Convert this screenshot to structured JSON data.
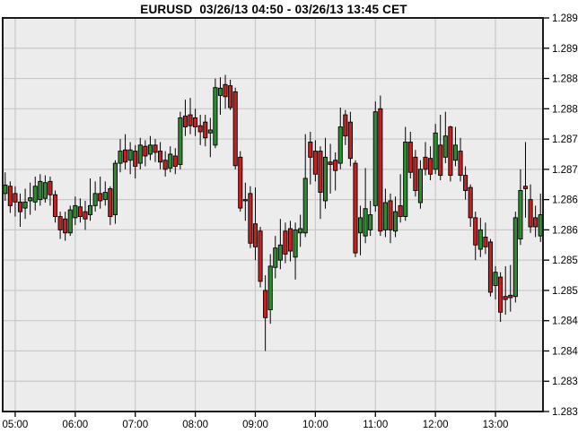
{
  "title": "EURUSD  03/26/13 04:50 - 03/26/13 13:45 CET",
  "chart_data": {
    "type": "candlestick",
    "symbol": "EURUSD",
    "period_label": "03/26/13 04:50 - 03/26/13 13:45 CET",
    "y_axis": {
      "min": 1.283,
      "max": 1.2895,
      "step": 0.0005,
      "labels": [
        "1.2895",
        "1.289",
        "1.2885",
        "1.288",
        "1.2875",
        "1.287",
        "1.2865",
        "1.286",
        "1.2855",
        "1.285",
        "1.2845",
        "1.284",
        "1.2835",
        "1.283"
      ]
    },
    "x_axis": {
      "labels": [
        "05:00",
        "06:00",
        "07:00",
        "08:00",
        "09:00",
        "10:00",
        "11:00",
        "12:00",
        "13:00"
      ]
    },
    "colors": {
      "up": "#2E8B32",
      "down": "#C32222",
      "wick": "#000000",
      "background": "#ECECEC",
      "grid": "#C9C9C9",
      "border": "#1A1A1A",
      "text": "#000000"
    },
    "grid": true,
    "legend": "none",
    "columns": [
      "time",
      "open",
      "high",
      "low",
      "close"
    ],
    "candles": [
      [
        "04:50",
        1.2866,
        1.28695,
        1.28648,
        1.28674
      ],
      [
        "04:55",
        1.28672,
        1.2868,
        1.28628,
        1.2864
      ],
      [
        "05:00",
        1.2866,
        1.28672,
        1.28622,
        1.28646
      ],
      [
        "05:05",
        1.28646,
        1.2866,
        1.28605,
        1.2863
      ],
      [
        "05:10",
        1.28636,
        1.28668,
        1.28618,
        1.28646
      ],
      [
        "05:15",
        1.28648,
        1.28678,
        1.28625,
        1.28653
      ],
      [
        "05:20",
        1.28646,
        1.28688,
        1.28632,
        1.28672
      ],
      [
        "05:25",
        1.2865,
        1.28692,
        1.2864,
        1.2868
      ],
      [
        "05:30",
        1.28652,
        1.2869,
        1.28645,
        1.28678
      ],
      [
        "05:35",
        1.2868,
        1.28688,
        1.2864,
        1.28658
      ],
      [
        "05:40",
        1.28658,
        1.28665,
        1.28612,
        1.28622
      ],
      [
        "05:45",
        1.28622,
        1.2863,
        1.28585,
        1.286
      ],
      [
        "05:50",
        1.28618,
        1.2863,
        1.28582,
        1.28595
      ],
      [
        "05:55",
        1.28595,
        1.2864,
        1.2859,
        1.28633
      ],
      [
        "06:00",
        1.2862,
        1.28655,
        1.28608,
        1.2864
      ],
      [
        "06:05",
        1.28638,
        1.28652,
        1.28612,
        1.28622
      ],
      [
        "06:10",
        1.2863,
        1.28648,
        1.286,
        1.28618
      ],
      [
        "06:15",
        1.28625,
        1.28685,
        1.28615,
        1.2864
      ],
      [
        "06:20",
        1.2864,
        1.2868,
        1.2863,
        1.2866
      ],
      [
        "06:25",
        1.2866,
        1.28688,
        1.28635,
        1.28648
      ],
      [
        "06:30",
        1.2865,
        1.2868,
        1.2864,
        1.28662
      ],
      [
        "06:35",
        1.28668,
        1.28672,
        1.28608,
        1.28622
      ],
      [
        "06:40",
        1.28625,
        1.28715,
        1.2861,
        1.2871
      ],
      [
        "06:45",
        1.2871,
        1.2875,
        1.28695,
        1.2873
      ],
      [
        "06:50",
        1.28732,
        1.28758,
        1.287,
        1.28712
      ],
      [
        "06:55",
        1.28715,
        1.28745,
        1.28692,
        1.28732
      ],
      [
        "07:00",
        1.2873,
        1.2874,
        1.28685,
        1.28705
      ],
      [
        "07:05",
        1.2871,
        1.28752,
        1.287,
        1.2874
      ],
      [
        "07:10",
        1.28738,
        1.28748,
        1.28705,
        1.28722
      ],
      [
        "07:15",
        1.28725,
        1.28755,
        1.28715,
        1.2874
      ],
      [
        "07:20",
        1.2874,
        1.2875,
        1.28712,
        1.28728
      ],
      [
        "07:25",
        1.2873,
        1.28745,
        1.287,
        1.28712
      ],
      [
        "07:30",
        1.28715,
        1.2873,
        1.28688,
        1.287
      ],
      [
        "07:35",
        1.28702,
        1.28738,
        1.28695,
        1.28725
      ],
      [
        "07:40",
        1.28722,
        1.28735,
        1.28692,
        1.28705
      ],
      [
        "07:45",
        1.28708,
        1.28795,
        1.287,
        1.28785
      ],
      [
        "07:50",
        1.28788,
        1.28815,
        1.28755,
        1.2877
      ],
      [
        "07:55",
        1.2879,
        1.28818,
        1.28758,
        1.28772
      ],
      [
        "08:00",
        1.28785,
        1.288,
        1.28755,
        1.2877
      ],
      [
        "08:05",
        1.28772,
        1.2879,
        1.2874,
        1.28762
      ],
      [
        "08:10",
        1.28778,
        1.2879,
        1.28738,
        1.28752
      ],
      [
        "08:15",
        1.2876,
        1.28785,
        1.2872,
        1.28765
      ],
      [
        "08:20",
        1.2874,
        1.2885,
        1.28735,
        1.28835
      ],
      [
        "08:25",
        1.28822,
        1.28852,
        1.2879,
        1.28834
      ],
      [
        "08:30",
        1.2884,
        1.28856,
        1.288,
        1.2882
      ],
      [
        "08:35",
        1.28838,
        1.28848,
        1.28798,
        1.28802
      ],
      [
        "08:40",
        1.28828,
        1.28835,
        1.287,
        1.28706
      ],
      [
        "08:45",
        1.2872,
        1.2873,
        1.2863,
        1.28636
      ],
      [
        "08:50",
        1.2865,
        1.28678,
        1.28615,
        1.28648
      ],
      [
        "08:55",
        1.2866,
        1.28672,
        1.2857,
        1.28578
      ],
      [
        "09:00",
        1.2861,
        1.2867,
        1.2855,
        1.28572
      ],
      [
        "09:05",
        1.28598,
        1.28605,
        1.28505,
        1.28515
      ],
      [
        "09:10",
        1.285,
        1.28525,
        1.284,
        1.28455
      ],
      [
        "09:15",
        1.28468,
        1.2856,
        1.28445,
        1.2854
      ],
      [
        "09:20",
        1.28538,
        1.2859,
        1.2852,
        1.2857
      ],
      [
        "09:25",
        1.2855,
        1.28618,
        1.28535,
        1.28575
      ],
      [
        "09:30",
        1.28598,
        1.28612,
        1.28545,
        1.2856
      ],
      [
        "09:35",
        1.28602,
        1.28615,
        1.28548,
        1.28565
      ],
      [
        "09:40",
        1.28555,
        1.28612,
        1.28518,
        1.286
      ],
      [
        "09:45",
        1.28595,
        1.28625,
        1.28572,
        1.28602
      ],
      [
        "09:50",
        1.28595,
        1.28758,
        1.28588,
        1.28685
      ],
      [
        "09:55",
        1.28745,
        1.28762,
        1.28675,
        1.2872
      ],
      [
        "10:00",
        1.2873,
        1.28748,
        1.2868,
        1.28692
      ],
      [
        "10:05",
        1.2873,
        1.28738,
        1.28618,
        1.28662
      ],
      [
        "10:10",
        1.28648,
        1.28752,
        1.28635,
        1.2872
      ],
      [
        "10:15",
        1.28712,
        1.28742,
        1.2866,
        1.28708
      ],
      [
        "10:20",
        1.28715,
        1.28728,
        1.28665,
        1.28698
      ],
      [
        "10:25",
        1.2871,
        1.28802,
        1.287,
        1.2877
      ],
      [
        "10:30",
        1.2879,
        1.28798,
        1.2874,
        1.28755
      ],
      [
        "10:35",
        1.28778,
        1.28795,
        1.28705,
        1.28718
      ],
      [
        "10:40",
        1.2871,
        1.28715,
        1.28555,
        1.28562
      ],
      [
        "10:45",
        1.28595,
        1.2864,
        1.28558,
        1.2862
      ],
      [
        "10:50",
        1.2859,
        1.28702,
        1.28578,
        1.28635
      ],
      [
        "10:55",
        1.286,
        1.28648,
        1.2859,
        1.28625
      ],
      [
        "11:00",
        1.2864,
        1.28812,
        1.2863,
        1.28795
      ],
      [
        "11:05",
        1.288,
        1.28822,
        1.2859,
        1.28598
      ],
      [
        "11:10",
        1.286,
        1.28668,
        1.28588,
        1.28645
      ],
      [
        "11:15",
        1.28648,
        1.2866,
        1.28578,
        1.286
      ],
      [
        "11:20",
        1.28598,
        1.28655,
        1.28588,
        1.2863
      ],
      [
        "11:25",
        1.2864,
        1.28692,
        1.28612,
        1.28622
      ],
      [
        "11:30",
        1.28622,
        1.2877,
        1.28615,
        1.28745
      ],
      [
        "11:35",
        1.28745,
        1.28762,
        1.28685,
        1.28695
      ],
      [
        "11:40",
        1.2872,
        1.28732,
        1.28655,
        1.28665
      ],
      [
        "11:45",
        1.28645,
        1.28715,
        1.28635,
        1.287
      ],
      [
        "11:50",
        1.2872,
        1.28745,
        1.2869,
        1.287
      ],
      [
        "11:55",
        1.28718,
        1.28738,
        1.28682,
        1.28692
      ],
      [
        "12:00",
        1.287,
        1.28775,
        1.28692,
        1.2876
      ],
      [
        "12:05",
        1.2874,
        1.2879,
        1.28682,
        1.2869
      ],
      [
        "12:10",
        1.2872,
        1.28795,
        1.2871,
        1.28755
      ],
      [
        "12:15",
        1.2877,
        1.28772,
        1.2868,
        1.2869
      ],
      [
        "12:20",
        1.28715,
        1.2877,
        1.28705,
        1.2874
      ],
      [
        "12:25",
        1.2873,
        1.28752,
        1.2868,
        1.2869
      ],
      [
        "12:30",
        1.2869,
        1.28705,
        1.2865,
        1.28665
      ],
      [
        "12:35",
        1.2867,
        1.28675,
        1.28605,
        1.2862
      ],
      [
        "12:40",
        1.2862,
        1.2863,
        1.2855,
        1.28575
      ],
      [
        "12:45",
        1.28568,
        1.2862,
        1.28555,
        1.286
      ],
      [
        "12:50",
        1.28588,
        1.28612,
        1.2856,
        1.28572
      ],
      [
        "12:55",
        1.2858,
        1.28585,
        1.2849,
        1.28497
      ],
      [
        "13:00",
        1.28508,
        1.2854,
        1.28485,
        1.2853
      ],
      [
        "13:05",
        1.28522,
        1.2853,
        1.28448,
        1.28464
      ],
      [
        "13:10",
        1.2849,
        1.2854,
        1.2846,
        1.28485
      ],
      [
        "13:15",
        1.28492,
        1.28542,
        1.28465,
        1.28488
      ],
      [
        "13:20",
        1.2849,
        1.2863,
        1.2848,
        1.2862
      ],
      [
        "13:25",
        1.28585,
        1.287,
        1.28575,
        1.28665
      ],
      [
        "13:30",
        1.28672,
        1.28745,
        1.2862,
        1.28668
      ],
      [
        "13:35",
        1.2865,
        1.28675,
        1.28595,
        1.28605
      ],
      [
        "13:40",
        1.2862,
        1.2864,
        1.28588,
        1.28605
      ],
      [
        "13:45",
        1.2859,
        1.2866,
        1.2858,
        1.28625
      ]
    ]
  }
}
